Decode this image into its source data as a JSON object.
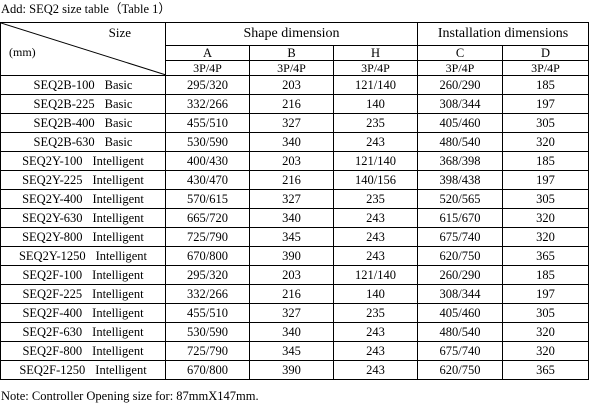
{
  "caption": "Add: SEQ2 size table（Table 1）",
  "corner": {
    "size_label": "Size",
    "unit_label": "(mm)"
  },
  "groups": {
    "shape": "Shape dimension",
    "installation": "Installation dimensions"
  },
  "columns": {
    "a": "A",
    "b": "B",
    "h": "H",
    "c": "C",
    "d": "D"
  },
  "subheaders": {
    "a": "3P/4P",
    "b": "3P/4P",
    "h": "3P/4P",
    "c": "3P/4P",
    "d": "3P/4P"
  },
  "rows": [
    {
      "model": "SEQ2B-100",
      "type": "Basic",
      "a": "295/320",
      "b": "203",
      "h": "121/140",
      "c": "260/290",
      "d": "185"
    },
    {
      "model": "SEQ2B-225",
      "type": "Basic",
      "a": "332/266",
      "b": "216",
      "h": "140",
      "c": "308/344",
      "d": "197"
    },
    {
      "model": "SEQ2B-400",
      "type": "Basic",
      "a": "455/510",
      "b": "327",
      "h": "235",
      "c": "405/460",
      "d": "305"
    },
    {
      "model": "SEQ2B-630",
      "type": "Basic",
      "a": "530/590",
      "b": "340",
      "h": "243",
      "c": "480/540",
      "d": "320"
    },
    {
      "model": "SEQ2Y-100",
      "type": "Intelligent",
      "a": "400/430",
      "b": "203",
      "h": "121/140",
      "c": "368/398",
      "d": "185"
    },
    {
      "model": "SEQ2Y-225",
      "type": "Intelligent",
      "a": "430/470",
      "b": "216",
      "h": "140/156",
      "c": "398/438",
      "d": "197"
    },
    {
      "model": "SEQ2Y-400",
      "type": "Intelligent",
      "a": "570/615",
      "b": "327",
      "h": "235",
      "c": "520/565",
      "d": "305"
    },
    {
      "model": "SEQ2Y-630",
      "type": "Intelligent",
      "a": "665/720",
      "b": "340",
      "h": "243",
      "c": "615/670",
      "d": "320"
    },
    {
      "model": "SEQ2Y-800",
      "type": "Intelligent",
      "a": "725/790",
      "b": "345",
      "h": "243",
      "c": "675/740",
      "d": "320"
    },
    {
      "model": "SEQ2Y-1250",
      "type": "Intelligent",
      "a": "670/800",
      "b": "390",
      "h": "243",
      "c": "620/750",
      "d": "365"
    },
    {
      "model": "SEQ2F-100",
      "type": "Intelligent",
      "a": "295/320",
      "b": "203",
      "h": "121/140",
      "c": "260/290",
      "d": "185"
    },
    {
      "model": "SEQ2F-225",
      "type": "Intelligent",
      "a": "332/266",
      "b": "216",
      "h": "140",
      "c": "308/344",
      "d": "197"
    },
    {
      "model": "SEQ2F-400",
      "type": "Intelligent",
      "a": "455/510",
      "b": "327",
      "h": "235",
      "c": "405/460",
      "d": "305"
    },
    {
      "model": "SEQ2F-630",
      "type": "Intelligent",
      "a": "530/590",
      "b": "340",
      "h": "243",
      "c": "480/540",
      "d": "320"
    },
    {
      "model": "SEQ2F-800",
      "type": "Intelligent",
      "a": "725/790",
      "b": "345",
      "h": "243",
      "c": "675/740",
      "d": "320"
    },
    {
      "model": "SEQ2F-1250",
      "type": "Intelligent",
      "a": "670/800",
      "b": "390",
      "h": "243",
      "c": "620/750",
      "d": "365"
    }
  ],
  "note": "Note:  Controller Opening size for:  87mmX147mm."
}
